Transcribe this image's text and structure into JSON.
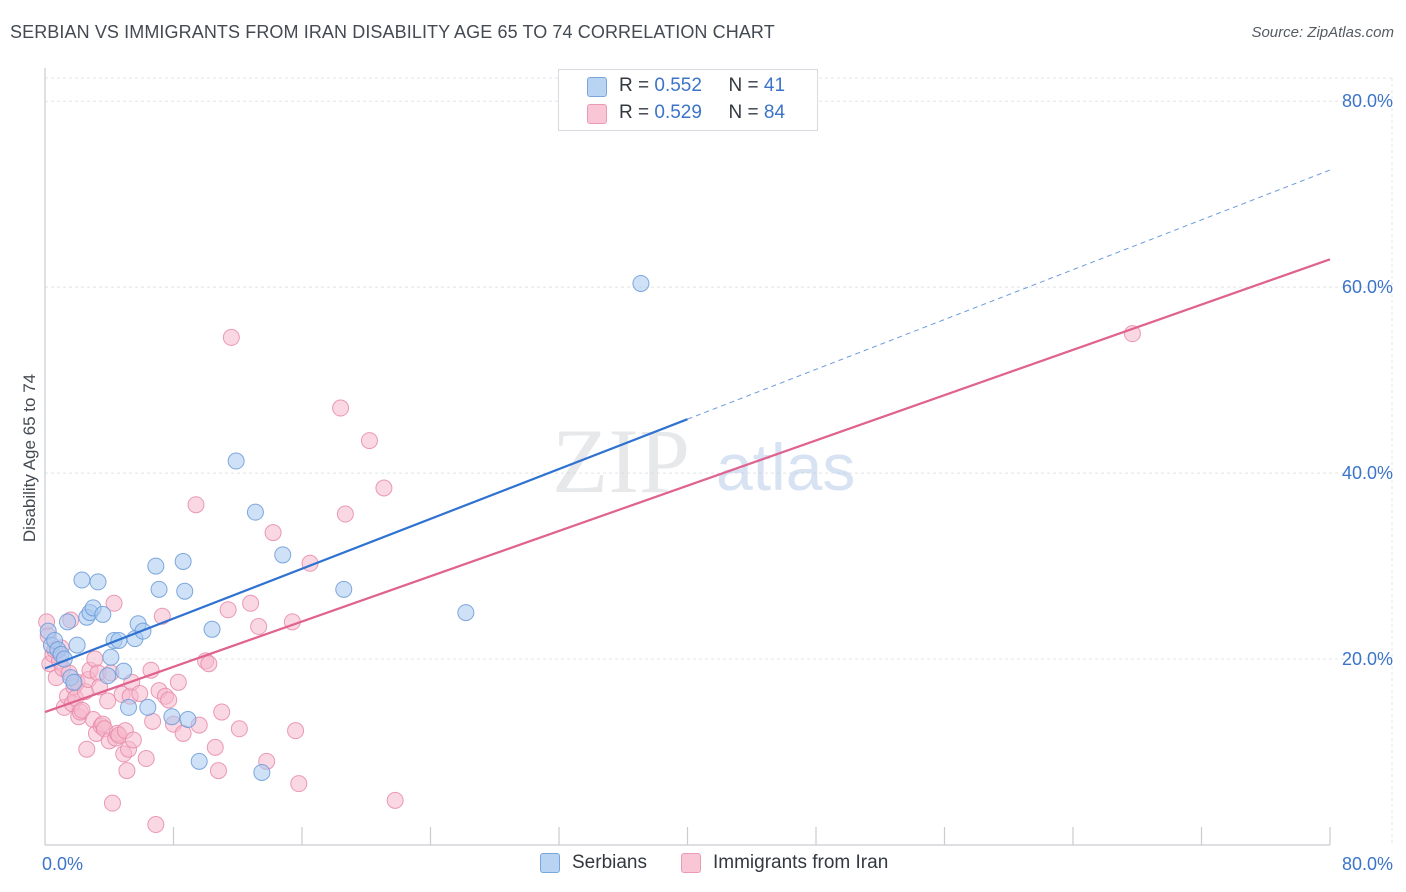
{
  "title": "SERBIAN VS IMMIGRANTS FROM IRAN DISABILITY AGE 65 TO 74 CORRELATION CHART",
  "source": "Source: ZipAtlas.com",
  "watermark": {
    "zip": "ZIP",
    "atlas": "atlas"
  },
  "legend_top": [
    {
      "r_label": "R =",
      "r_value": "0.552",
      "n_label": "N =",
      "n_value": "41"
    },
    {
      "r_label": "R =",
      "r_value": "0.529",
      "n_label": "N =",
      "n_value": "84"
    }
  ],
  "legend_bottom": [
    {
      "label": "Serbians"
    },
    {
      "label": "Immigrants from Iran"
    }
  ],
  "colors": {
    "serbians_fill": "#a8c8f0",
    "serbians_stroke": "#6a9ad8",
    "serbians_line": "#2f72d0",
    "iran_fill": "#f6b8cc",
    "iran_stroke": "#e88aa8",
    "iran_line": "#e0628e",
    "tick_label": "#3b74c8",
    "grid": "#e2e4e8"
  },
  "chart_data": {
    "type": "scatter",
    "ylabel": "Disability Age 65 to 74",
    "x_tick_labels": [
      "0.0%",
      "80.0%"
    ],
    "y_tick_labels": [
      "20.0%",
      "40.0%",
      "60.0%",
      "80.0%"
    ],
    "y_ticks": [
      20,
      40,
      60,
      80
    ],
    "xlim": [
      0,
      80
    ],
    "ylim": [
      0,
      82.5
    ],
    "grid": true,
    "legend": "top-center",
    "series": [
      {
        "name": "Serbians",
        "R": 0.552,
        "N": 41,
        "trend": {
          "x0": 0,
          "y0": 19.0,
          "x1": 40,
          "y1": 45.8,
          "dashed_to_x": 80,
          "dashed_to_y": 72.6
        },
        "points": [
          [
            0.2,
            23.0
          ],
          [
            0.4,
            21.5
          ],
          [
            0.6,
            22.0
          ],
          [
            0.8,
            21.0
          ],
          [
            1.0,
            20.5
          ],
          [
            1.2,
            20.0
          ],
          [
            1.4,
            24.0
          ],
          [
            1.6,
            18.0
          ],
          [
            1.8,
            17.5
          ],
          [
            2.0,
            21.5
          ],
          [
            2.3,
            28.5
          ],
          [
            2.6,
            24.5
          ],
          [
            2.8,
            25.0
          ],
          [
            3.0,
            25.5
          ],
          [
            3.3,
            28.3
          ],
          [
            3.6,
            24.8
          ],
          [
            3.9,
            18.2
          ],
          [
            4.1,
            20.2
          ],
          [
            4.3,
            22.0
          ],
          [
            4.6,
            22.0
          ],
          [
            4.9,
            18.7
          ],
          [
            5.2,
            14.8
          ],
          [
            5.6,
            22.2
          ],
          [
            5.8,
            23.8
          ],
          [
            6.1,
            23.0
          ],
          [
            6.4,
            14.8
          ],
          [
            6.9,
            30.0
          ],
          [
            7.1,
            27.5
          ],
          [
            7.9,
            13.8
          ],
          [
            8.6,
            30.5
          ],
          [
            8.7,
            27.3
          ],
          [
            8.9,
            13.5
          ],
          [
            9.6,
            9.0
          ],
          [
            10.4,
            23.2
          ],
          [
            11.9,
            41.3
          ],
          [
            13.1,
            35.8
          ],
          [
            13.5,
            7.8
          ],
          [
            14.8,
            31.2
          ],
          [
            18.6,
            27.5
          ],
          [
            26.2,
            25.0
          ],
          [
            37.1,
            60.4
          ]
        ]
      },
      {
        "name": "Immigrants from Iran",
        "R": 0.529,
        "N": 84,
        "trend": {
          "x0": 0,
          "y0": 14.3,
          "x1": 80,
          "y1": 63.0
        },
        "points": [
          [
            0.1,
            24.0
          ],
          [
            0.3,
            19.5
          ],
          [
            0.5,
            20.5
          ],
          [
            0.7,
            18.0
          ],
          [
            0.9,
            19.8
          ],
          [
            1.1,
            19.0
          ],
          [
            1.2,
            14.8
          ],
          [
            1.4,
            16.0
          ],
          [
            1.5,
            18.5
          ],
          [
            1.6,
            24.2
          ],
          [
            1.7,
            15.2
          ],
          [
            1.8,
            17.0
          ],
          [
            1.9,
            15.8
          ],
          [
            2.0,
            17.5
          ],
          [
            2.1,
            13.8
          ],
          [
            2.2,
            14.3
          ],
          [
            2.3,
            14.5
          ],
          [
            2.5,
            16.5
          ],
          [
            2.6,
            10.3
          ],
          [
            2.7,
            17.8
          ],
          [
            2.8,
            18.8
          ],
          [
            3.0,
            13.5
          ],
          [
            3.1,
            20.0
          ],
          [
            3.2,
            12.0
          ],
          [
            3.3,
            18.5
          ],
          [
            3.4,
            17.0
          ],
          [
            3.5,
            12.8
          ],
          [
            3.6,
            13.0
          ],
          [
            3.7,
            12.5
          ],
          [
            3.9,
            15.5
          ],
          [
            4.0,
            11.2
          ],
          [
            4.1,
            18.5
          ],
          [
            4.2,
            4.5
          ],
          [
            4.3,
            26.0
          ],
          [
            4.4,
            11.5
          ],
          [
            4.5,
            12.0
          ],
          [
            4.6,
            11.8
          ],
          [
            4.8,
            16.2
          ],
          [
            4.9,
            9.8
          ],
          [
            5.0,
            12.3
          ],
          [
            5.1,
            8.0
          ],
          [
            5.2,
            10.3
          ],
          [
            5.3,
            16.0
          ],
          [
            5.4,
            17.5
          ],
          [
            5.5,
            11.3
          ],
          [
            5.9,
            16.3
          ],
          [
            6.3,
            9.3
          ],
          [
            6.6,
            18.8
          ],
          [
            6.7,
            13.3
          ],
          [
            6.9,
            2.2
          ],
          [
            7.1,
            16.6
          ],
          [
            7.3,
            24.6
          ],
          [
            7.5,
            16.0
          ],
          [
            7.7,
            15.6
          ],
          [
            8.0,
            13.0
          ],
          [
            8.3,
            17.5
          ],
          [
            8.6,
            12.0
          ],
          [
            9.4,
            36.6
          ],
          [
            9.6,
            12.9
          ],
          [
            10.0,
            19.8
          ],
          [
            10.2,
            19.5
          ],
          [
            10.6,
            10.5
          ],
          [
            10.8,
            8.0
          ],
          [
            11.0,
            14.3
          ],
          [
            11.4,
            25.3
          ],
          [
            11.6,
            54.6
          ],
          [
            12.1,
            12.5
          ],
          [
            12.8,
            26.0
          ],
          [
            13.3,
            23.5
          ],
          [
            13.8,
            9.0
          ],
          [
            14.2,
            33.6
          ],
          [
            15.4,
            24.0
          ],
          [
            15.6,
            12.3
          ],
          [
            15.8,
            6.6
          ],
          [
            16.5,
            30.3
          ],
          [
            18.4,
            47.0
          ],
          [
            18.7,
            35.6
          ],
          [
            20.2,
            43.5
          ],
          [
            21.1,
            38.4
          ],
          [
            21.8,
            4.8
          ],
          [
            67.7,
            55.0
          ],
          [
            0.2,
            22.5
          ],
          [
            0.6,
            21.0
          ],
          [
            1.0,
            21.2
          ]
        ]
      }
    ]
  }
}
